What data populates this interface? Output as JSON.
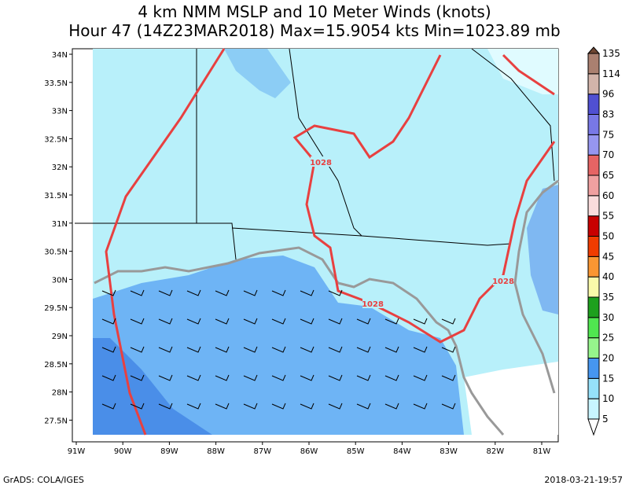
{
  "title": [
    "4 km NMM MSLP and 10 Meter Winds (knots)",
    "Hour 47 (14Z23MAR2018) Max=15.9054 kts Min=1023.89 mb"
  ],
  "lat_labels": [
    "34N",
    "33.5N",
    "33N",
    "32.5N",
    "32N",
    "31.5N",
    "31N",
    "30.5N",
    "30N",
    "29.5N",
    "29N",
    "28.5N",
    "28N",
    "27.5N"
  ],
  "lon_labels": [
    "91W",
    "90W",
    "89W",
    "88W",
    "87W",
    "86W",
    "85W",
    "84W",
    "83W",
    "82W",
    "81W"
  ],
  "contour_labels": [
    "1028",
    "1028",
    "1028"
  ],
  "colorbar": {
    "levels": [
      5,
      10,
      15,
      20,
      25,
      30,
      35,
      40,
      45,
      50,
      55,
      60,
      65,
      70,
      75,
      83,
      96,
      114,
      135
    ],
    "colors": [
      "#ffffff",
      "#c8f5ff",
      "#96e1fa",
      "#4696f0",
      "#96f58c",
      "#50e650",
      "#1ea01e",
      "#fafaaa",
      "#fa9632",
      "#f03c00",
      "#c80000",
      "#fadcdc",
      "#f0a0a0",
      "#e66464",
      "#9696f0",
      "#7878e6",
      "#5050d2",
      "#d2b4aa",
      "#aa8070",
      "#6e4632"
    ]
  },
  "footer": {
    "left": "GrADS: COLA/IGES",
    "right": "2018-03-21-19:57"
  }
}
